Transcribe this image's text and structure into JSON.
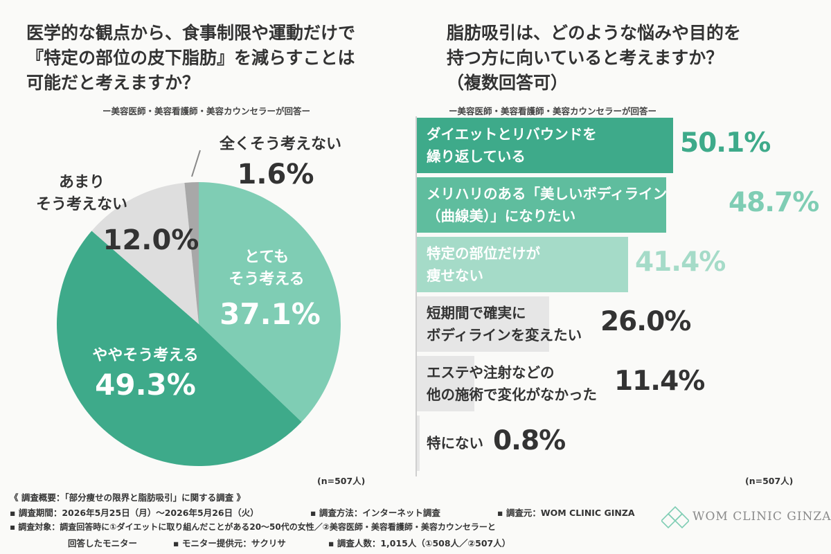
{
  "left": {
    "title": "医学的な観点から、食事制限や運動だけで\n『特定の部位の皮下脂肪』を減らすことは\n可能だと考えますか？",
    "subtitle": "ー美容医師・美容看護師・美容カウンセラーが回答ー",
    "n_note": "(n=507人)"
  },
  "right": {
    "title": "脂肪吸引は、どのような悩みや目的を\n持つ方に向いていると考えますか？\n（複数回答可）",
    "subtitle": "ー美容医師・美容看護師・美容カウンセラーが回答ー",
    "n_note": "(n=507人)"
  },
  "chart_data": [
    {
      "type": "pie",
      "slices": [
        {
          "label": "とても\nそう考える",
          "value": 37.1,
          "value_label": "37.1%",
          "color": "#7fcdb4"
        },
        {
          "label": "ややそう考える",
          "value": 49.3,
          "value_label": "49.3%",
          "color": "#3eaa8a"
        },
        {
          "label": "あまり\nそう考えない",
          "value": 12.0,
          "value_label": "12.0%",
          "color": "#dedede"
        },
        {
          "label": "全くそう考えない",
          "value": 1.6,
          "value_label": "1.6%",
          "color": "#a8a8a8"
        }
      ]
    },
    {
      "type": "bar",
      "orientation": "horizontal",
      "categories": [
        "ダイエットとリバウンドを\n繰り返している",
        "メリハリのある「美しいボディライン\n（曲線美）」になりたい",
        "特定の部位だけが\n痩せない",
        "短期間で確実に\nボディラインを変えたい",
        "エステや注射などの\n他の施術で変化がなかった",
        "特にない"
      ],
      "values": [
        50.1,
        48.7,
        41.4,
        26.0,
        11.4,
        0.8
      ],
      "value_labels": [
        "50.1%",
        "48.7%",
        "41.4%",
        "26.0%",
        "11.4%",
        "0.8%"
      ],
      "colors": [
        "#3eaa8a",
        "#5fbd9e",
        "#a5dbc8",
        "#e6e6e6",
        "#e6e6e6",
        "#e6e6e6"
      ],
      "value_colors": [
        "#3eaa8a",
        "#7fcdb4",
        "#a5dbc8",
        "#333333",
        "#333333",
        "#333333"
      ],
      "label_colors": [
        "#ffffff",
        "#ffffff",
        "#ffffff",
        "#333333",
        "#333333",
        "#333333"
      ]
    }
  ],
  "footer": {
    "line1": "《 調査概要：「部分痩せの限界と脂肪吸引」に関する調査 》",
    "period": "▪ 調査期間：2026年5月25日（月）〜2026年5月26日（火）",
    "method": "▪ 調査方法：インターネット調査",
    "source": "▪ 調査元：WOM CLINIC GINZA",
    "target": "▪ 調査対象：調査回答時に①ダイエットに取り組んだことがある20〜50代の女性／②美容医師・美容看護師・美容カウンセラーと",
    "target2": "回答したモニター",
    "provider": "▪ モニター提供元：サクリサ",
    "count": "▪ 調査人数：1,015人（①508人／②507人）"
  },
  "logo": {
    "text": "WOM CLINIC GINZA",
    "icon": "diamond-lattice-icon",
    "color": "#7fcdb4"
  }
}
